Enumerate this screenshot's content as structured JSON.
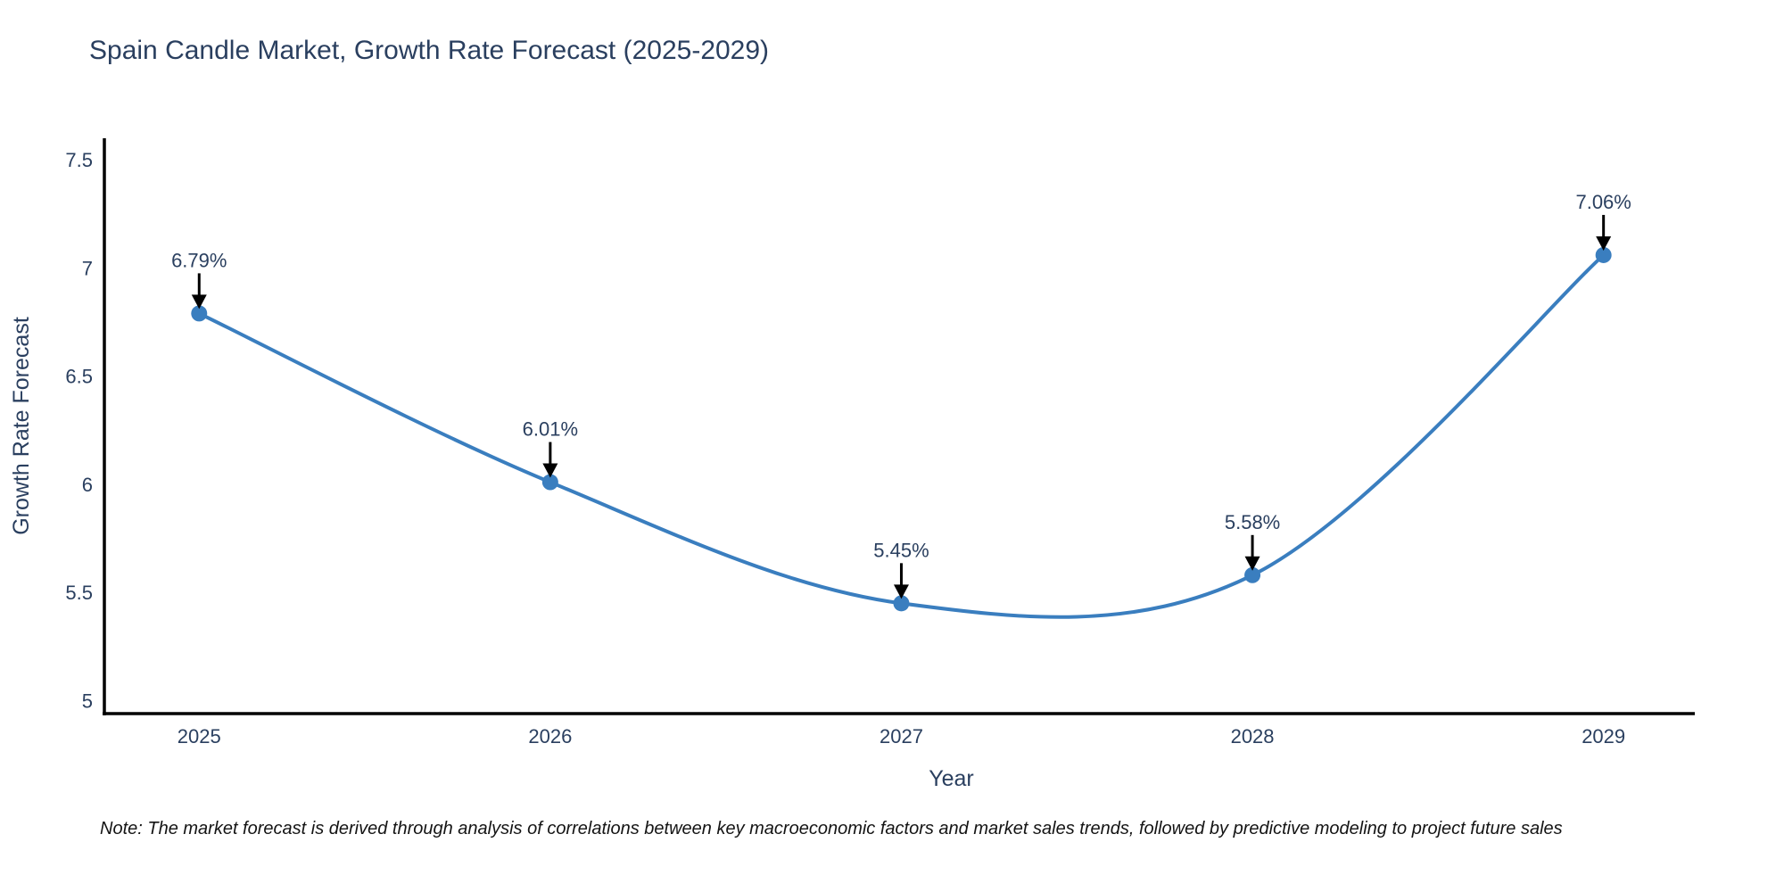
{
  "title": "Spain Candle Market, Growth Rate Forecast (2025-2029)",
  "note": "Note: The market forecast is derived through analysis of correlations between key macroeconomic factors and market sales trends, followed by predictive modeling to project future sales",
  "chart_data": {
    "type": "line",
    "title": "Spain Candle Market, Growth Rate Forecast (2025-2029)",
    "xlabel": "Year",
    "ylabel": "Growth Rate Forecast",
    "x": [
      2025,
      2026,
      2027,
      2028,
      2029
    ],
    "x_tick_labels": [
      "2025",
      "2026",
      "2027",
      "2028",
      "2029"
    ],
    "series": [
      {
        "name": "Growth Rate Forecast",
        "values": [
          6.79,
          6.01,
          5.45,
          5.58,
          7.06
        ]
      }
    ],
    "point_labels": [
      "6.79%",
      "6.01%",
      "5.45%",
      "5.58%",
      "7.06%"
    ],
    "y_tick_labels": [
      "5",
      "5.5",
      "6",
      "6.5",
      "7",
      "7.5"
    ],
    "y_tick_values": [
      5,
      5.5,
      6,
      6.5,
      7,
      7.5
    ],
    "ylim": [
      4.94,
      7.6
    ],
    "xlim": [
      2024.73,
      2029.26
    ],
    "line_shape": "spline",
    "grid": false,
    "legend": "none",
    "colors": {
      "line": "#3a7ebf",
      "marker": "#3a7ebf",
      "arrow": "#000000",
      "axis_line": "#000000",
      "text": "#2a3f5f",
      "note": "#141414",
      "background": "#ffffff"
    }
  }
}
